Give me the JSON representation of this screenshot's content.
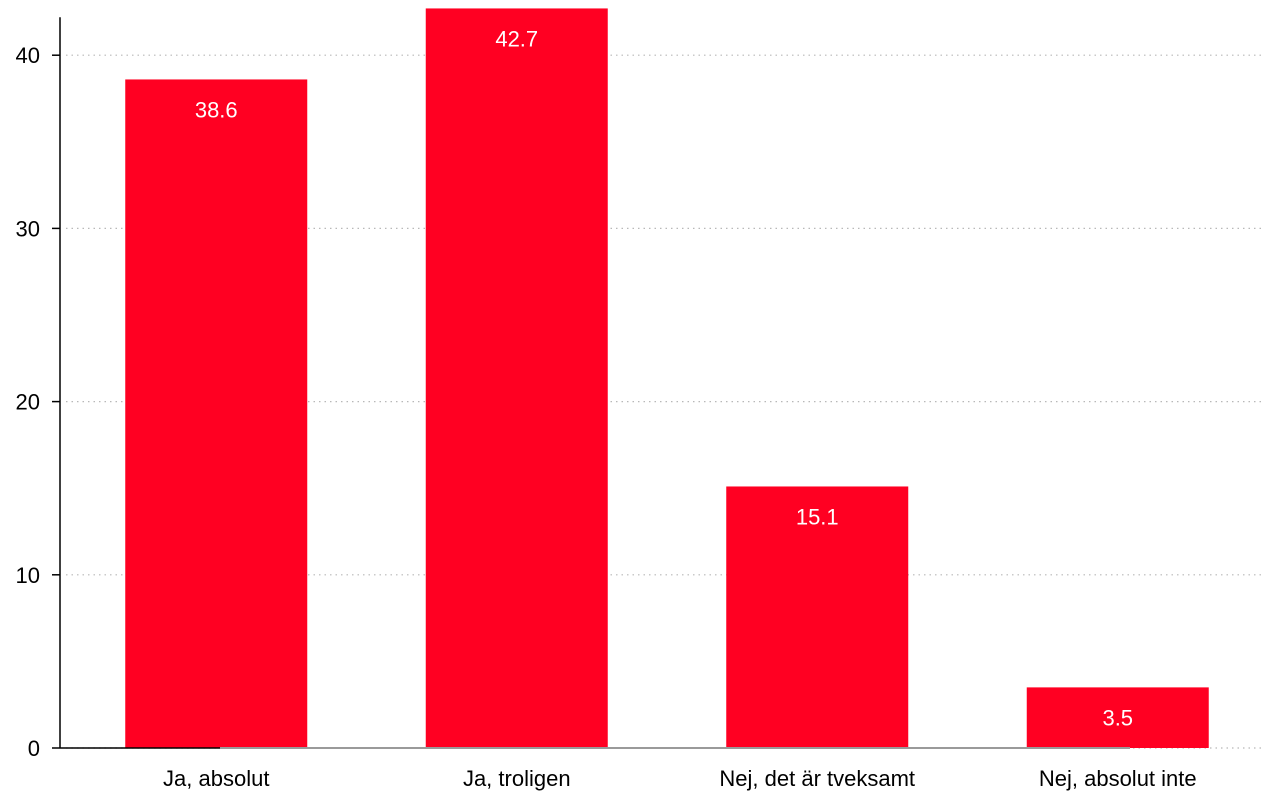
{
  "chart_data": {
    "type": "bar",
    "categories": [
      "Ja, absolut",
      "Ja, troligen",
      "Nej, det är tveksamt",
      "Nej, absolut inte"
    ],
    "values": [
      38.6,
      42.7,
      15.1,
      3.5
    ],
    "data_labels": [
      "38.6",
      "42.7",
      "15.1",
      "3.5"
    ],
    "title": "",
    "xlabel": "",
    "ylabel": "",
    "ylim": [
      0,
      43
    ],
    "yticks": [
      0,
      10,
      20,
      30,
      40
    ],
    "grid": true,
    "bar_color": "#ff0022",
    "label_color": "#ffffff"
  }
}
